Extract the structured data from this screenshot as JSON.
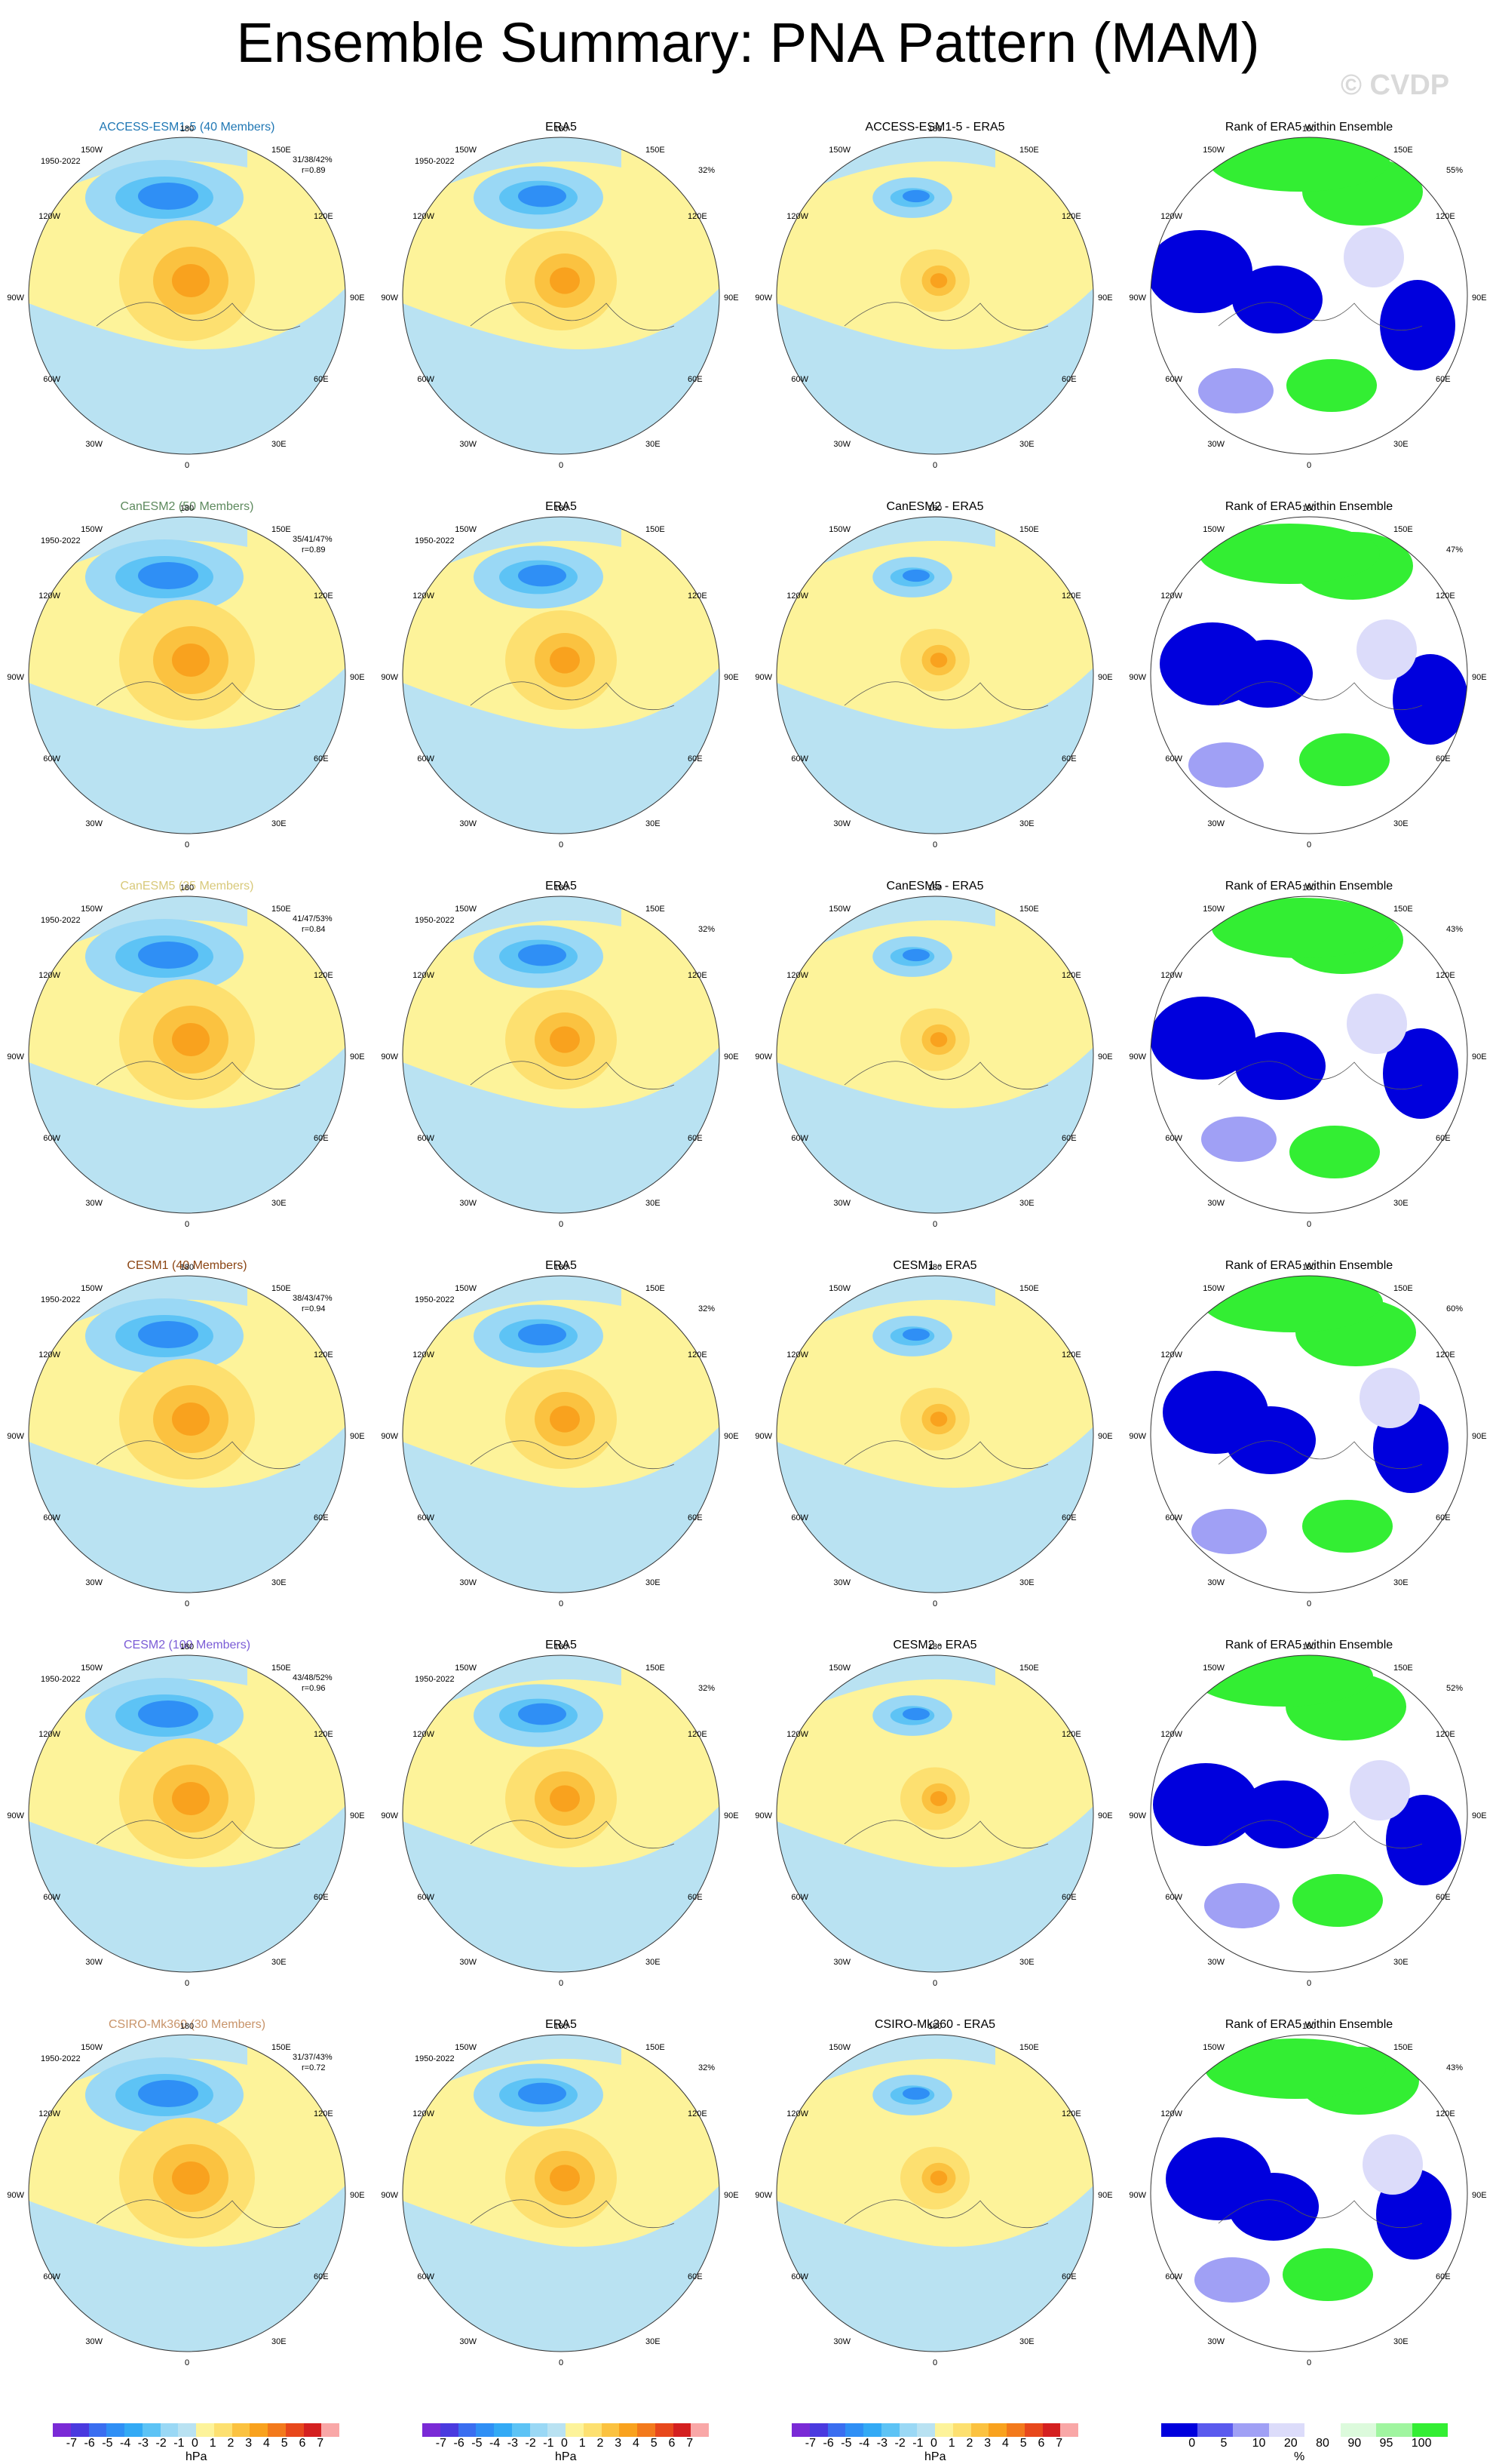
{
  "title": "Ensemble Summary: PNA Pattern (MAM)",
  "watermark": "© CVDP",
  "period": "1950-2022",
  "lon_labels": [
    "180",
    "150E",
    "120E",
    "90E",
    "60E",
    "30E",
    "0",
    "30W",
    "60W",
    "90W",
    "120W",
    "150W"
  ],
  "rows": [
    {
      "model": "ACCESS-ESM1-5 (40 Members)",
      "model_color": "#1f77b4",
      "stats": "31/38/42%",
      "r": "r=0.89",
      "diff_title": "ACCESS-ESM1-5 - ERA5",
      "rank_pct": "55%",
      "era5_pct": "32%"
    },
    {
      "model": "CanESM2 (50 Members)",
      "model_color": "#5e8a5e",
      "stats": "35/41/47%",
      "r": "r=0.89",
      "diff_title": "CanESM2 - ERA5",
      "rank_pct": "47%",
      "era5_pct": ""
    },
    {
      "model": "CanESM5 (25 Members)",
      "model_color": "#d8c97a",
      "stats": "41/47/53%",
      "r": "r=0.84",
      "diff_title": "CanESM5 - ERA5",
      "rank_pct": "43%",
      "era5_pct": "32%"
    },
    {
      "model": "CESM1 (40 Members)",
      "model_color": "#8b4513",
      "stats": "38/43/47%",
      "r": "r=0.94",
      "diff_title": "CESM1 - ERA5",
      "rank_pct": "60%",
      "era5_pct": "32%"
    },
    {
      "model": "CESM2 (100 Members)",
      "model_color": "#7b5cd6",
      "stats": "43/48/52%",
      "r": "r=0.96",
      "diff_title": "CESM2 - ERA5",
      "rank_pct": "52%",
      "era5_pct": "32%"
    },
    {
      "model": "CSIRO-Mk360 (30 Members)",
      "model_color": "#c8946a",
      "stats": "31/37/43%",
      "r": "r=0.72",
      "diff_title": "CSIRO-Mk360 - ERA5",
      "rank_pct": "43%",
      "era5_pct": "32%"
    }
  ],
  "era5_title": "ERA5",
  "rank_title": "Rank of ERA5 within Ensemble",
  "colorbar_hpa": {
    "ticks": [
      "-7",
      "-6",
      "-5",
      "-4",
      "-3",
      "-2",
      "-1",
      "0",
      "1",
      "2",
      "3",
      "4",
      "5",
      "6",
      "7"
    ],
    "unit": "hPa",
    "colors": [
      "#7a2ad6",
      "#4a3adf",
      "#3a6ef0",
      "#2f8ff5",
      "#33aaf5",
      "#5dc3f5",
      "#9ad8f5",
      "#b9e2f2",
      "#fdf39a",
      "#fde070",
      "#fbc240",
      "#f9a21e",
      "#f37a1c",
      "#e8481c",
      "#d42020",
      "#f9a7a7"
    ]
  },
  "colorbar_rank": {
    "ticks": [
      "0",
      "5",
      "10",
      "20",
      "80",
      "90",
      "95",
      "100"
    ],
    "unit": "%",
    "colors": [
      "#0000dd",
      "#5a5aee",
      "#a0a0f5",
      "#dcdcfa",
      "#ffffff",
      "#dcfadc",
      "#a0f5a0",
      "#33ee33"
    ]
  },
  "palette": {
    "ocean_light": "#b9e2f2",
    "land_yellow": "#fdf39a",
    "blue_core": "#2f8ff5",
    "orange_core": "#f9a21e",
    "rank_green": "#33ee33",
    "rank_blue": "#0000dd"
  }
}
